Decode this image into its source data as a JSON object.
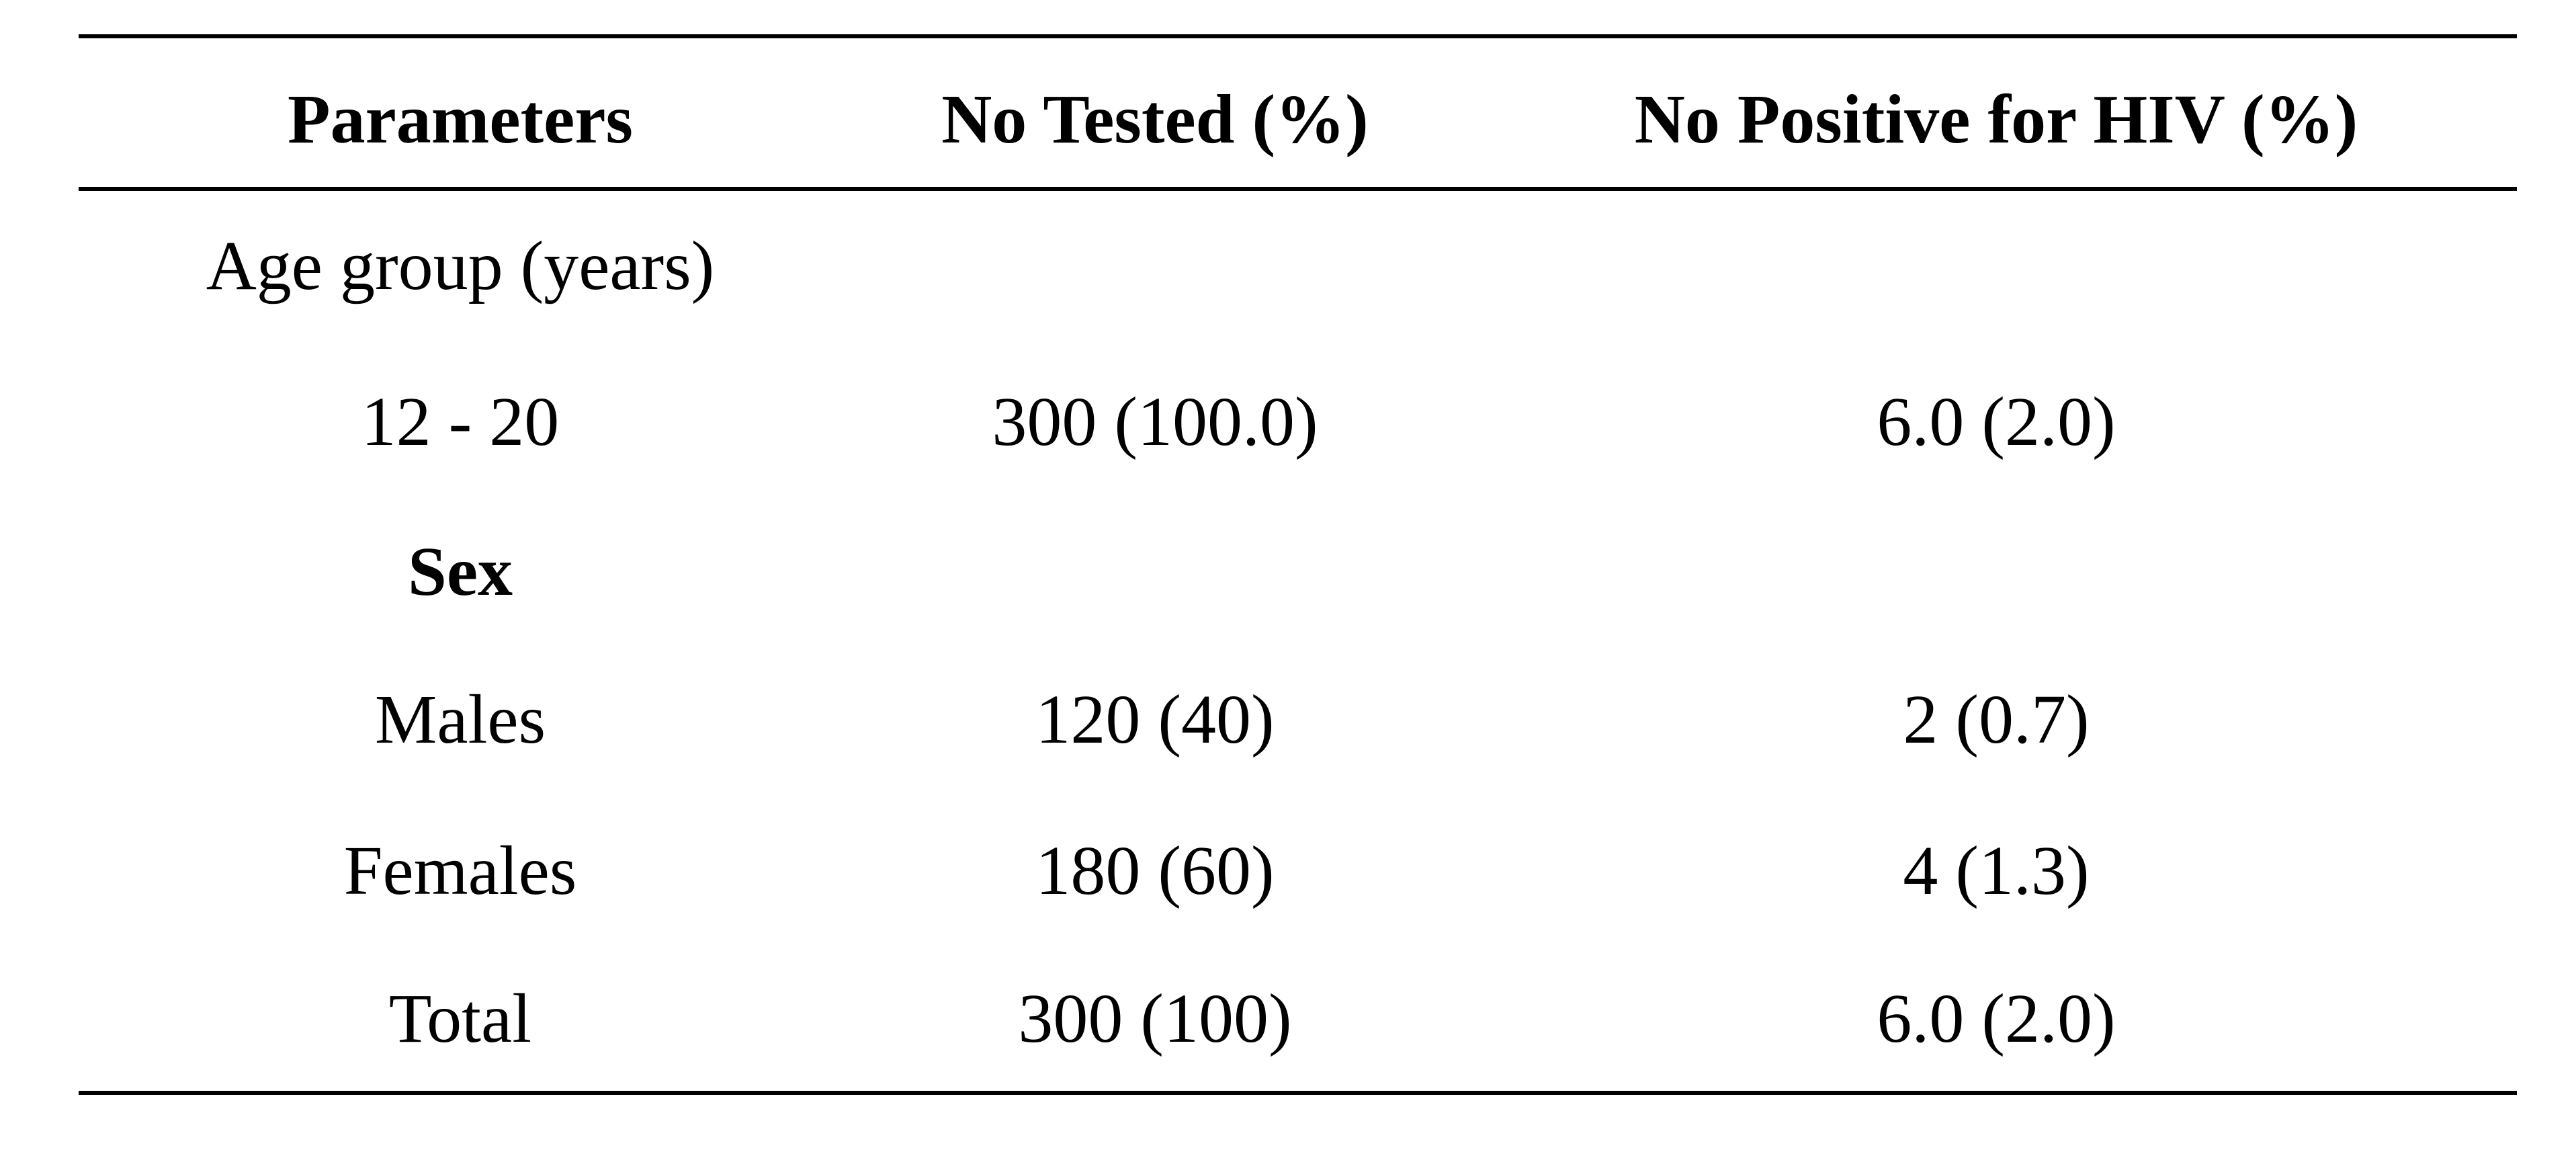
{
  "table": {
    "header": [
      "Parameters",
      "No Tested (%)",
      "No Positive for HIV (%)"
    ],
    "rows": [
      [
        "Age group (years)"
      ],
      [
        "12 - 20",
        "300 (100.0)",
        "6.0 (2.0)"
      ],
      [
        "Sex"
      ],
      [
        "Males",
        "120 (40)",
        "2 (0.7)"
      ],
      [
        "Females",
        "180 (60)",
        "4 (1.3)"
      ],
      [
        "Total",
        "300 (100)",
        "6.0 (2.0)"
      ]
    ]
  }
}
